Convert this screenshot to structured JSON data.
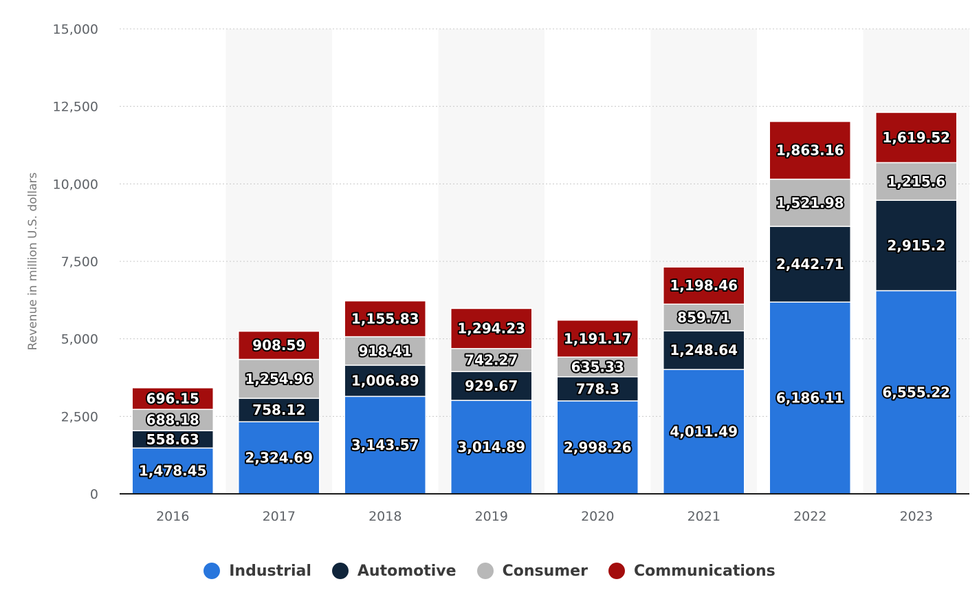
{
  "chart_data": {
    "type": "bar",
    "stacked": true,
    "categories": [
      "2016",
      "2017",
      "2018",
      "2019",
      "2020",
      "2021",
      "2022",
      "2023"
    ],
    "series": [
      {
        "name": "Industrial",
        "color": "#2876dd",
        "values": [
          1478.45,
          2324.69,
          3143.57,
          3014.89,
          2998.26,
          4011.49,
          6186.11,
          6555.22
        ],
        "labels": [
          "1,478.45",
          "2,324.69",
          "3,143.57",
          "3,014.89",
          "2,998.26",
          "4,011.49",
          "6,186.11",
          "6,555.22"
        ]
      },
      {
        "name": "Automotive",
        "color": "#10253b",
        "values": [
          558.63,
          758.12,
          1006.89,
          929.67,
          778.3,
          1248.64,
          2442.71,
          2915.2
        ],
        "labels": [
          "558.63",
          "758.12",
          "1,006.89",
          "929.67",
          "778.3",
          "1,248.64",
          "2,442.71",
          "2,915.2"
        ]
      },
      {
        "name": "Consumer",
        "color": "#b8b8b8",
        "values": [
          688.18,
          1254.96,
          918.41,
          742.27,
          635.33,
          859.71,
          1521.98,
          1215.6
        ],
        "labels": [
          "688.18",
          "1,254.96",
          "918.41",
          "742.27",
          "635.33",
          "859.71",
          "1,521.98",
          "1,215.6"
        ]
      },
      {
        "name": "Communications",
        "color": "#a30d0d",
        "values": [
          696.15,
          908.59,
          1155.83,
          1294.23,
          1191.17,
          1198.46,
          1863.16,
          1619.52
        ],
        "labels": [
          "696.15",
          "908.59",
          "1,155.83",
          "1,294.23",
          "1,191.17",
          "1,198.46",
          "1,863.16",
          "1,619.52"
        ]
      }
    ],
    "ylabel": "Revenue in million U.S. dollars",
    "xlabel": "",
    "ylim": [
      0,
      15000
    ],
    "yticks": [
      0,
      2500,
      5000,
      7500,
      10000,
      12500,
      15000
    ],
    "ytick_labels": [
      "0",
      "2,500",
      "5,000",
      "7,500",
      "10,000",
      "12,500",
      "15,000"
    ],
    "grid": true,
    "legend_position": "bottom"
  }
}
